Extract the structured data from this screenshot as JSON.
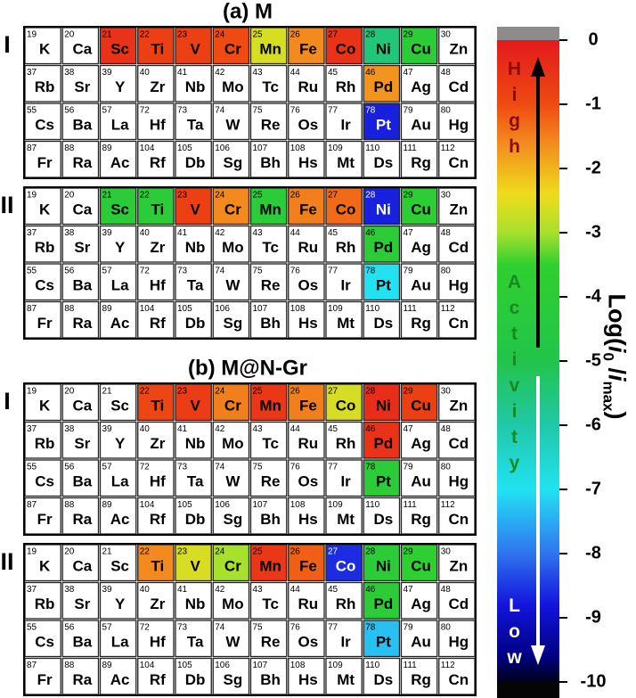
{
  "elements": {
    "symbols": [
      "K",
      "Ca",
      "Sc",
      "Ti",
      "V",
      "Cr",
      "Mn",
      "Fe",
      "Co",
      "Ni",
      "Cu",
      "Zn",
      "Rb",
      "Sr",
      "Y",
      "Zr",
      "Nb",
      "Mo",
      "Tc",
      "Ru",
      "Rh",
      "Pd",
      "Ag",
      "Cd",
      "Cs",
      "Ba",
      "La",
      "Hf",
      "Ta",
      "W",
      "Re",
      "Os",
      "Ir",
      "Pt",
      "Au",
      "Hg",
      "Fr",
      "Ra",
      "Ac",
      "Rf",
      "Db",
      "Sg",
      "Bh",
      "Hs",
      "Mt",
      "Ds",
      "Rg",
      "Cn"
    ],
    "numbers": [
      19,
      20,
      21,
      22,
      23,
      24,
      25,
      26,
      27,
      28,
      29,
      30,
      37,
      38,
      39,
      40,
      41,
      42,
      43,
      44,
      45,
      46,
      47,
      48,
      55,
      56,
      57,
      72,
      73,
      74,
      75,
      76,
      77,
      78,
      79,
      80,
      87,
      88,
      89,
      104,
      105,
      106,
      107,
      108,
      109,
      110,
      111,
      112
    ]
  },
  "chart_data": [
    {
      "type": "heatmap",
      "title": "(a) M",
      "panel": "I",
      "values": [
        null,
        null,
        -0.5,
        -0.8,
        -0.8,
        -1.0,
        -2.6,
        -1.6,
        -0.5,
        -5.5,
        -4.0,
        null,
        null,
        null,
        null,
        null,
        null,
        null,
        null,
        null,
        null,
        -1.7,
        null,
        null,
        null,
        null,
        null,
        null,
        null,
        null,
        null,
        null,
        null,
        -8.7,
        null,
        null,
        null,
        null,
        null,
        null,
        null,
        null,
        null,
        null,
        null,
        null,
        null,
        null
      ]
    },
    {
      "type": "heatmap",
      "panel": "II",
      "values": [
        null,
        null,
        -4.0,
        -4.0,
        -0.8,
        -1.6,
        -4.0,
        -1.5,
        -1.3,
        -8.7,
        -3.8,
        null,
        null,
        null,
        null,
        null,
        null,
        null,
        null,
        null,
        null,
        -4.0,
        null,
        null,
        null,
        null,
        null,
        null,
        null,
        null,
        null,
        null,
        null,
        -7.0,
        null,
        null,
        null,
        null,
        null,
        null,
        null,
        null,
        null,
        null,
        null,
        null,
        null,
        null
      ]
    },
    {
      "type": "heatmap",
      "title": "(b) M@N-Gr",
      "panel": "I",
      "values": [
        null,
        null,
        null,
        -0.9,
        -0.7,
        -1.5,
        -0.6,
        -1.5,
        -2.6,
        -0.4,
        -0.8,
        null,
        null,
        null,
        null,
        null,
        null,
        null,
        null,
        null,
        null,
        -0.5,
        null,
        null,
        null,
        null,
        null,
        null,
        null,
        null,
        null,
        null,
        null,
        -4.0,
        null,
        null,
        null,
        null,
        null,
        null,
        null,
        null,
        null,
        null,
        null,
        null,
        null,
        null
      ]
    },
    {
      "type": "heatmap",
      "panel": "II",
      "values": [
        null,
        null,
        null,
        -1.6,
        -2.6,
        -3.0,
        -0.6,
        -1.2,
        -8.6,
        -4.0,
        -3.6,
        null,
        null,
        null,
        null,
        null,
        null,
        null,
        null,
        null,
        null,
        -4.0,
        null,
        null,
        null,
        null,
        null,
        null,
        null,
        null,
        null,
        null,
        null,
        -7.3,
        null,
        null,
        null,
        null,
        null,
        null,
        null,
        null,
        null,
        null,
        null,
        null,
        null,
        null
      ]
    },
    {
      "type": "colorbar",
      "ylabel": [
        {
          "text": "Log("
        },
        {
          "text": "i",
          "style": "italic"
        },
        {
          "text": "0",
          "style": "sub"
        },
        {
          "text": " /"
        },
        {
          "text": "i",
          "style": "italic"
        },
        {
          "text": "max",
          "style": "sub"
        },
        {
          "text": ")"
        }
      ],
      "ylim": [
        -10,
        0
      ],
      "yticks": [
        0,
        -1,
        -2,
        -3,
        -4,
        -5,
        -6,
        -7,
        -8,
        -9,
        -10
      ],
      "labels": [
        "High",
        "Activity",
        "Low"
      ],
      "colormap": [
        [
          0,
          "#e41a1c"
        ],
        [
          -1,
          "#ee4a12"
        ],
        [
          -1.6,
          "#f28a1e"
        ],
        [
          -2.4,
          "#eedc1c"
        ],
        [
          -3,
          "#a8e02e"
        ],
        [
          -3.5,
          "#2fd02f"
        ],
        [
          -5,
          "#22c44a"
        ],
        [
          -6,
          "#20c8a8"
        ],
        [
          -7,
          "#22e2f2"
        ],
        [
          -8,
          "#2f74f0"
        ],
        [
          -8.8,
          "#1414dc"
        ],
        [
          -9.6,
          "#000082"
        ],
        [
          -10,
          "#000018"
        ]
      ]
    }
  ]
}
